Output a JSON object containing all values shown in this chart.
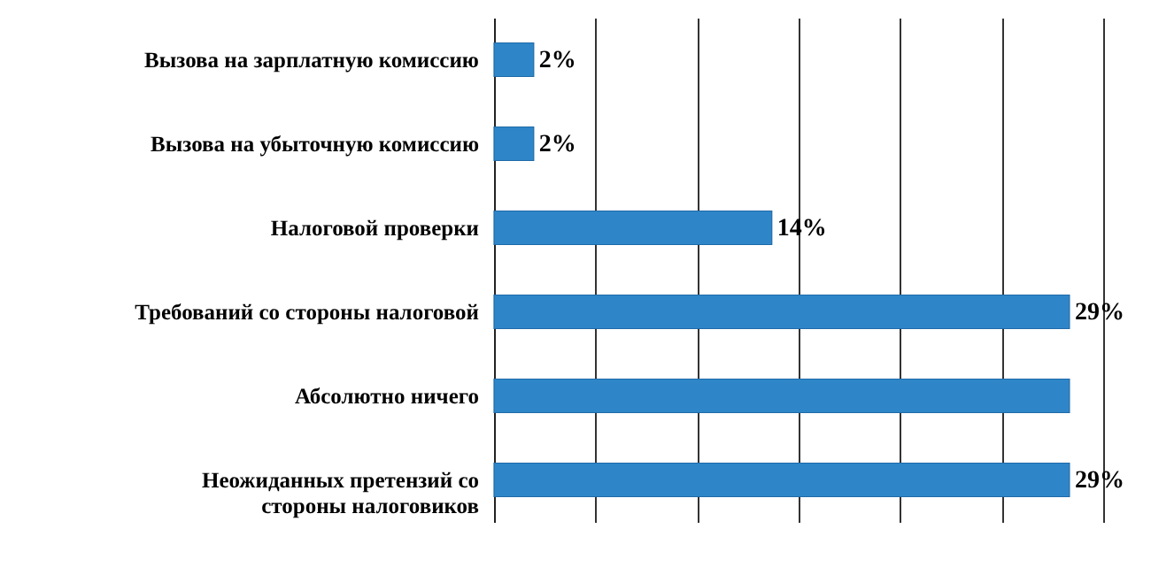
{
  "chart_data": {
    "type": "bar",
    "orientation": "horizontal",
    "categories": [
      "Вызова на зарплатную комиссию",
      "Вызова на убыточную комиссию",
      "Налоговой проверки",
      "Требований со стороны налоговой",
      "Абсолютно ничего",
      "Неожиданных претензий со стороны налоговиков"
    ],
    "values": [
      2,
      2,
      14,
      29,
      29,
      29
    ],
    "value_labels": [
      "2%",
      "2%",
      "14%",
      "29%",
      null,
      "29%"
    ],
    "color": "#2e86c8",
    "xlim": [
      0,
      30.7
    ],
    "xticks": [
      {
        "value": 0,
        "label": null
      },
      {
        "value": 5.12,
        "label": null
      },
      {
        "value": 10.23,
        "label": null
      },
      {
        "value": 15.35,
        "label": null
      },
      {
        "value": 20.47,
        "label": null
      },
      {
        "value": 25.58,
        "label": null
      },
      {
        "value": 30.7,
        "label": null
      }
    ],
    "grid": "x",
    "tick_labels": "y"
  }
}
